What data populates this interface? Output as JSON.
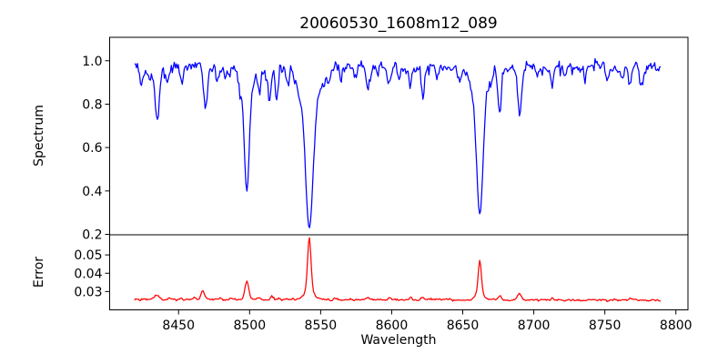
{
  "figure": {
    "background": "#ffffff",
    "axis_color": "#000000",
    "text_color": "#000000"
  },
  "chart_data": {
    "type": "line",
    "title": "20060530_1608m12_089",
    "xlabel": "Wavelength",
    "legend": "none",
    "grid": false,
    "seed": 20060530,
    "x": {
      "data_min": 8419,
      "data_max": 8790,
      "step": 0.7,
      "xlim": [
        8401.5,
        8808.5
      ],
      "ticks": [
        8450,
        8500,
        8550,
        8600,
        8650,
        8700,
        8750,
        8800
      ],
      "tick_labels": [
        "8450",
        "8500",
        "8550",
        "8600",
        "8650",
        "8700",
        "8750",
        "8800"
      ]
    },
    "panels": [
      {
        "name": "spectrum",
        "ylabel": "Spectrum",
        "line_color": "#0000ff",
        "ylim": [
          0.198,
          1.108
        ],
        "yticks": [
          0.2,
          0.4,
          0.6,
          0.8,
          1.0
        ],
        "ytick_labels": [
          "0.2",
          "0.4",
          "0.6",
          "0.8",
          "1.0"
        ],
        "continuum_level": 0.97,
        "noise_sigma": 0.021,
        "absorption_features": [
          [
            8424,
            0.07,
            1.2
          ],
          [
            8430,
            0.05,
            1.0
          ],
          [
            8435,
            0.24,
            1.5
          ],
          [
            8442,
            0.07,
            1.2
          ],
          [
            8452,
            0.06,
            1.0
          ],
          [
            8469,
            0.17,
            1.4
          ],
          [
            8477,
            0.05,
            1.0
          ],
          [
            8483,
            0.06,
            1.0
          ],
          [
            8493,
            0.05,
            1.0
          ],
          [
            8498,
            0.46,
            1.7
          ],
          [
            8498,
            0.11,
            4.5
          ],
          [
            8507,
            0.11,
            1.0
          ],
          [
            8514,
            0.16,
            1.0
          ],
          [
            8519,
            0.16,
            1.0
          ],
          [
            8527,
            0.05,
            1.0
          ],
          [
            8542,
            0.54,
            2.5
          ],
          [
            8542,
            0.2,
            6.5
          ],
          [
            8556,
            0.05,
            1.0
          ],
          [
            8564,
            0.05,
            1.0
          ],
          [
            8575,
            0.06,
            1.1
          ],
          [
            8583,
            0.09,
            1.2
          ],
          [
            8590,
            0.05,
            1.0
          ],
          [
            8598,
            0.07,
            1.1
          ],
          [
            8605,
            0.05,
            1.0
          ],
          [
            8613,
            0.09,
            1.1
          ],
          [
            8622,
            0.13,
            1.2
          ],
          [
            8632,
            0.05,
            1.0
          ],
          [
            8648,
            0.07,
            1.0
          ],
          [
            8662,
            0.51,
            2.1
          ],
          [
            8662,
            0.17,
            5.5
          ],
          [
            8676,
            0.2,
            1.2
          ],
          [
            8690,
            0.22,
            1.4
          ],
          [
            8702,
            0.05,
            1.0
          ],
          [
            8713,
            0.07,
            1.1
          ],
          [
            8722,
            0.05,
            1.0
          ],
          [
            8736,
            0.06,
            1.0
          ],
          [
            8752,
            0.06,
            1.0
          ],
          [
            8762,
            0.05,
            1.0
          ],
          [
            8768,
            0.09,
            1.2
          ],
          [
            8776,
            0.1,
            1.2
          ]
        ],
        "absorption_minima_readings": [
          {
            "wavelength": 8435,
            "flux": 0.72
          },
          {
            "wavelength": 8469,
            "flux": 0.79
          },
          {
            "wavelength": 8498,
            "flux": 0.41
          },
          {
            "wavelength": 8542,
            "flux": 0.24
          },
          {
            "wavelength": 8662,
            "flux": 0.27
          },
          {
            "wavelength": 8676,
            "flux": 0.76
          },
          {
            "wavelength": 8690,
            "flux": 0.74
          }
        ]
      },
      {
        "name": "error",
        "ylabel": "Error",
        "line_color": "#ff0000",
        "ylim": [
          0.02,
          0.061
        ],
        "yticks": [
          0.03,
          0.04,
          0.05
        ],
        "ytick_labels": [
          "0.03",
          "0.04",
          "0.05"
        ],
        "baseline_level": 0.0258,
        "baseline_slope": -1.6e-06,
        "noise_sigma": 0.00045,
        "peak_features": [
          [
            8435,
            0.0022,
            1.5
          ],
          [
            8452,
            0.0008,
            1.0
          ],
          [
            8467,
            0.0045,
            1.3
          ],
          [
            8498,
            0.01,
            1.3
          ],
          [
            8507,
            0.0012,
            1.0
          ],
          [
            8516,
            0.0018,
            1.0
          ],
          [
            8542,
            0.029,
            1.2
          ],
          [
            8542,
            0.0045,
            3.5
          ],
          [
            8560,
            0.0008,
            1.0
          ],
          [
            8583,
            0.0015,
            1.0
          ],
          [
            8598,
            0.001,
            1.0
          ],
          [
            8613,
            0.001,
            1.0
          ],
          [
            8622,
            0.0012,
            1.0
          ],
          [
            8662,
            0.0185,
            1.1
          ],
          [
            8662,
            0.0032,
            3.0
          ],
          [
            8676,
            0.0028,
            1.1
          ],
          [
            8690,
            0.0035,
            1.2
          ],
          [
            8713,
            0.001,
            1.0
          ],
          [
            8768,
            0.0012,
            1.0
          ]
        ],
        "peak_readings": [
          {
            "wavelength": 8467,
            "error": 0.031
          },
          {
            "wavelength": 8498,
            "error": 0.036
          },
          {
            "wavelength": 8542,
            "error": 0.058
          },
          {
            "wavelength": 8662,
            "error": 0.047
          }
        ]
      }
    ]
  }
}
